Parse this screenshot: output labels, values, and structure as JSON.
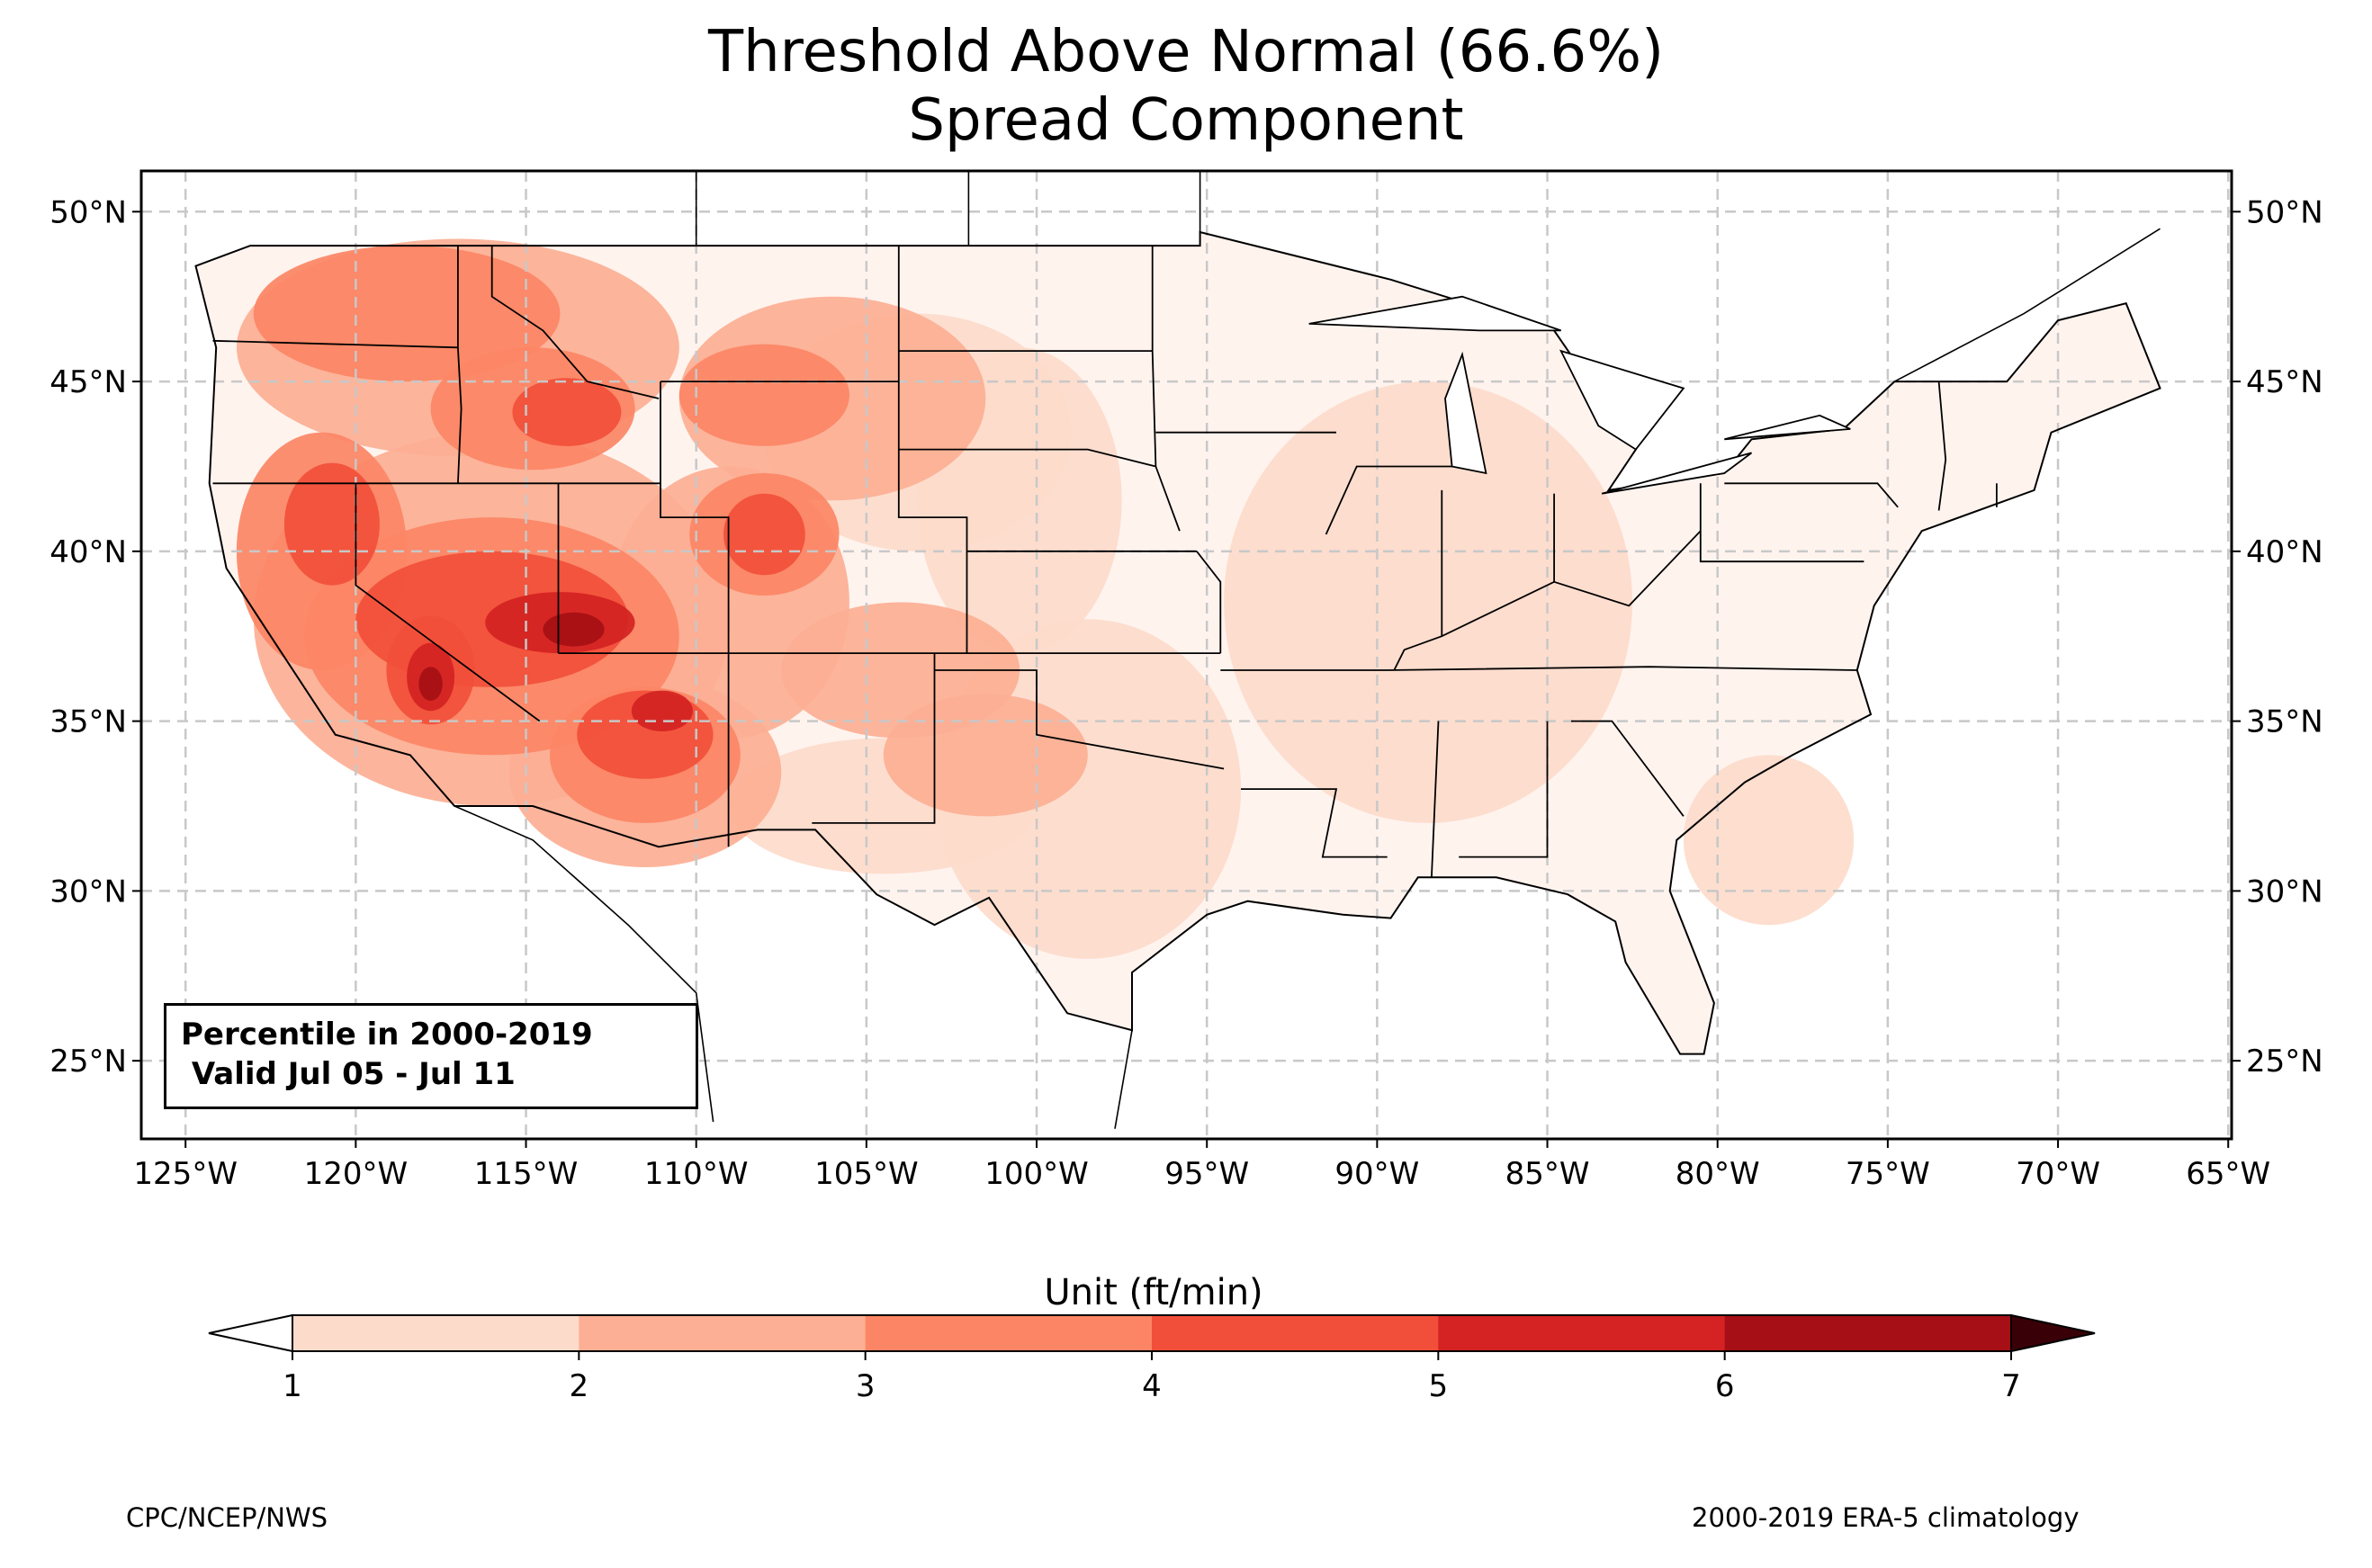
{
  "title": {
    "line1": "Threshold Above Normal (66.6%)",
    "line2": "Spread Component"
  },
  "map": {
    "projection": "PlateCarree",
    "lon_range": [
      -126.3,
      -64.9
    ],
    "lat_range": [
      22.7,
      51.2
    ],
    "lon_ticks": [
      {
        "value": -125,
        "label": "125°W"
      },
      {
        "value": -120,
        "label": "120°W"
      },
      {
        "value": -115,
        "label": "115°W"
      },
      {
        "value": -110,
        "label": "110°W"
      },
      {
        "value": -105,
        "label": "105°W"
      },
      {
        "value": -100,
        "label": "100°W"
      },
      {
        "value": -95,
        "label": "95°W"
      },
      {
        "value": -90,
        "label": "90°W"
      },
      {
        "value": -85,
        "label": "85°W"
      },
      {
        "value": -80,
        "label": "80°W"
      },
      {
        "value": -75,
        "label": "75°W"
      },
      {
        "value": -70,
        "label": "70°W"
      },
      {
        "value": -65,
        "label": "65°W"
      }
    ],
    "lat_ticks": [
      {
        "value": 50,
        "label": "50°N"
      },
      {
        "value": 45,
        "label": "45°N"
      },
      {
        "value": 40,
        "label": "40°N"
      },
      {
        "value": 35,
        "label": "35°N"
      },
      {
        "value": 30,
        "label": "30°N"
      },
      {
        "value": 25,
        "label": "25°N"
      }
    ],
    "gridlines": "dashed",
    "info_box": {
      "line1": "Percentile in 2000-2019",
      "line2": " Valid Jul 05 - Jul 11"
    },
    "field_levels": [
      {
        "region": "CONUS background",
        "level": "1-2"
      },
      {
        "region": "Pacific Northwest / northern Rockies",
        "level": "3-4"
      },
      {
        "region": "California / Nevada",
        "level": "3-5"
      },
      {
        "region": "Southern Nevada / Utah / northern Arizona",
        "level": "5-7"
      },
      {
        "region": "Arizona",
        "level": "3-5"
      },
      {
        "region": "Colorado / Wyoming",
        "level": "3-4"
      },
      {
        "region": "New Mexico / west Texas",
        "level": "2-3"
      }
    ]
  },
  "colorbar": {
    "label": "Unit (ft/min)",
    "ticks": [
      "1",
      "2",
      "3",
      "4",
      "5",
      "6",
      "7"
    ],
    "extend": "both",
    "under_color": "#ffffff",
    "over_color": "#3a0008",
    "colors": [
      "#fddbcb",
      "#fcaf94",
      "#fc8565",
      "#f24f3a",
      "#d42322",
      "#a50f15"
    ]
  },
  "footer": {
    "left": "CPC/NCEP/NWS",
    "right": "2000-2019 ERA-5 climatology"
  }
}
